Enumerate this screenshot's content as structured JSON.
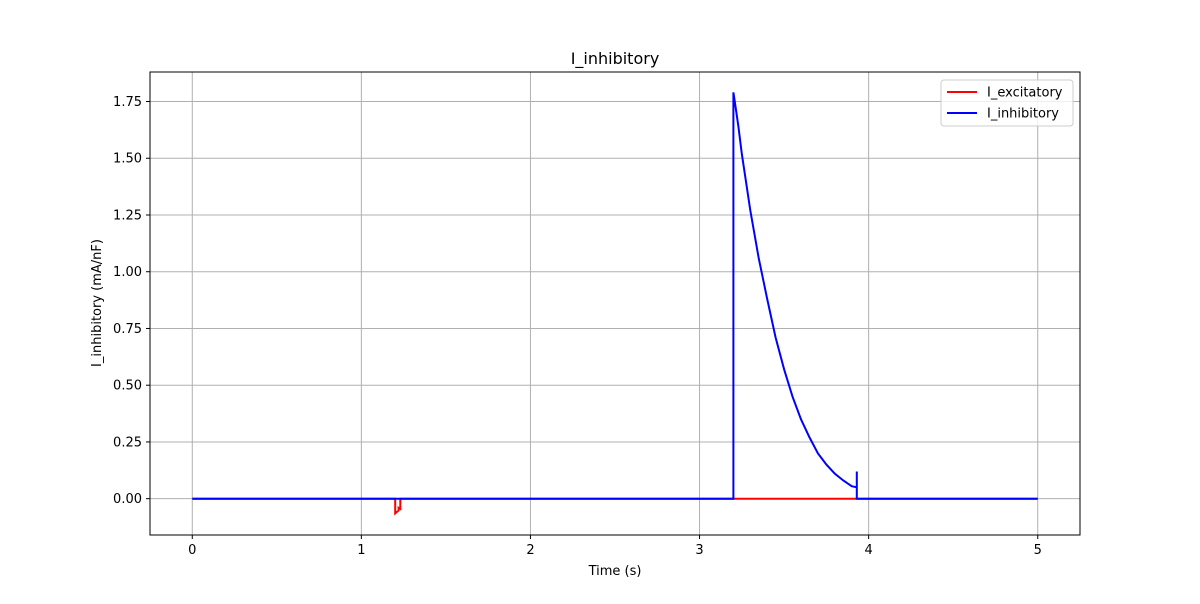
{
  "chart_data": {
    "type": "line",
    "title": "I_inhibitory",
    "xlabel": "Time (s)",
    "ylabel": "I_inhibitory (mA/nF)",
    "xlim": [
      -0.25,
      5.25
    ],
    "ylim": [
      -0.16,
      1.88
    ],
    "xticks": [
      0,
      1,
      2,
      3,
      4,
      5
    ],
    "xtick_labels": [
      "0",
      "1",
      "2",
      "3",
      "4",
      "5"
    ],
    "yticks": [
      0.0,
      0.25,
      0.5,
      0.75,
      1.0,
      1.25,
      1.5,
      1.75
    ],
    "ytick_labels": [
      "0.00",
      "0.25",
      "0.50",
      "0.75",
      "1.00",
      "1.25",
      "1.50",
      "1.75"
    ],
    "grid": true,
    "legend_position": "top-right",
    "series": [
      {
        "name": "I_excitatory",
        "color": "#ff0000",
        "x": [
          0,
          1.2,
          1.2,
          1.21,
          1.22,
          1.22,
          1.23,
          1.23,
          3.2,
          3.93,
          3.93,
          5
        ],
        "y": [
          0,
          0,
          -0.065,
          -0.058,
          -0.052,
          -0.04,
          -0.045,
          0,
          0,
          0,
          0,
          0
        ]
      },
      {
        "name": "I_inhibitory",
        "color": "#0000ff",
        "x": [
          0,
          3.2,
          3.2,
          3.21,
          3.23,
          3.25,
          3.3,
          3.35,
          3.4,
          3.45,
          3.5,
          3.55,
          3.6,
          3.65,
          3.7,
          3.75,
          3.8,
          3.85,
          3.9,
          3.93,
          3.93,
          3.93,
          3.93,
          5
        ],
        "y": [
          0,
          0,
          1.79,
          1.74,
          1.64,
          1.52,
          1.27,
          1.06,
          0.88,
          0.71,
          0.57,
          0.45,
          0.35,
          0.27,
          0.2,
          0.15,
          0.11,
          0.08,
          0.055,
          0.05,
          0.12,
          0.08,
          0,
          0
        ]
      }
    ]
  }
}
